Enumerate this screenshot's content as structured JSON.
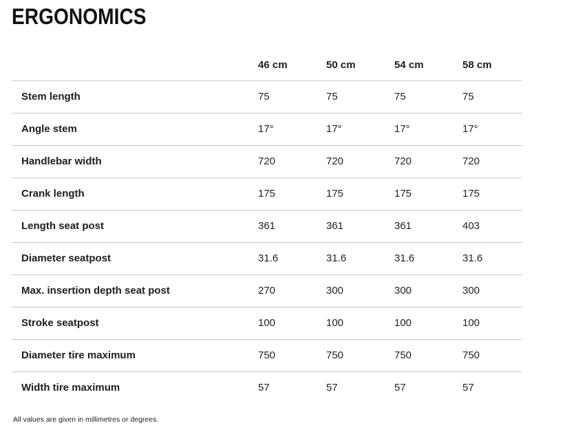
{
  "page": {
    "title": "ERGONOMICS",
    "footnote": "All values are given in millimetres or degrees."
  },
  "table": {
    "columns": [
      "46 cm",
      "50 cm",
      "54 cm",
      "58 cm"
    ],
    "rows": [
      {
        "label": "Stem length",
        "values": [
          "75",
          "75",
          "75",
          "75"
        ]
      },
      {
        "label": "Angle stem",
        "values": [
          "17°",
          "17°",
          "17°",
          "17°"
        ]
      },
      {
        "label": "Handlebar width",
        "values": [
          "720",
          "720",
          "720",
          "720"
        ]
      },
      {
        "label": "Crank length",
        "values": [
          "175",
          "175",
          "175",
          "175"
        ]
      },
      {
        "label": "Length seat post",
        "values": [
          "361",
          "361",
          "361",
          "403"
        ]
      },
      {
        "label": "Diameter seatpost",
        "values": [
          "31.6",
          "31.6",
          "31.6",
          "31.6"
        ]
      },
      {
        "label": "Max. insertion depth seat post",
        "values": [
          "270",
          "300",
          "300",
          "300"
        ]
      },
      {
        "label": "Stroke seatpost",
        "values": [
          "100",
          "100",
          "100",
          "100"
        ]
      },
      {
        "label": "Diameter tire maximum",
        "values": [
          "750",
          "750",
          "750",
          "750"
        ]
      },
      {
        "label": "Width tire maximum",
        "values": [
          "57",
          "57",
          "57",
          "57"
        ]
      }
    ]
  },
  "colors": {
    "text": "#1d1d1d",
    "divider": "#c6c6c6",
    "background": "#ffffff"
  }
}
